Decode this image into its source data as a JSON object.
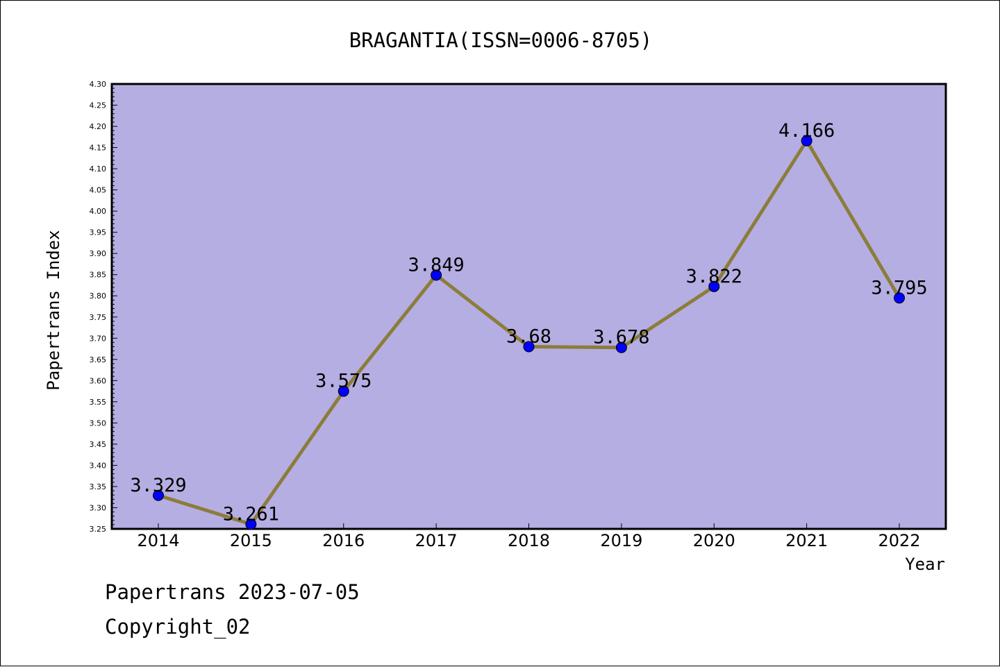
{
  "chart_data": {
    "type": "line",
    "title": "BRAGANTIA(ISSN=0006-8705)",
    "xlabel": "Year",
    "ylabel": "Papertrans Index",
    "categories": [
      "2014",
      "2015",
      "2016",
      "2017",
      "2018",
      "2019",
      "2020",
      "2021",
      "2022"
    ],
    "series": [
      {
        "values": [
          3.329,
          3.261,
          3.575,
          3.849,
          3.68,
          3.678,
          3.822,
          4.166,
          3.795
        ],
        "labels": [
          "3.329",
          "3.261",
          "3.575",
          "3.849",
          "3.68",
          "3.678",
          "3.822",
          "4.166",
          "3.795"
        ]
      }
    ],
    "ylim": [
      3.25,
      4.3
    ],
    "yticks": [
      "3.25",
      "3.30",
      "3.35",
      "3.40",
      "3.45",
      "3.50",
      "3.55",
      "3.60",
      "3.65",
      "3.70",
      "3.75",
      "3.80",
      "3.85",
      "3.90",
      "3.95",
      "4.00",
      "4.05",
      "4.10",
      "4.15",
      "4.20",
      "4.25",
      "4.30"
    ],
    "grid": false,
    "colors": {
      "plot_background": "#b5aee2",
      "line": "#8b7d3a",
      "marker": "#0000ff"
    }
  },
  "footer": {
    "line1": "Papertrans 2023-07-05",
    "line2": "Copyright_02"
  }
}
